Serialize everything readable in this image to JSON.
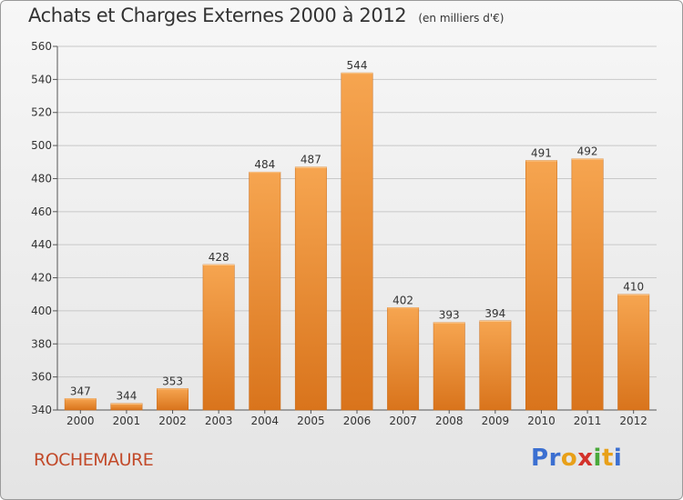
{
  "title": "Achats et Charges Externes 2000 à 2012",
  "units": "(en milliers d'€)",
  "city": "ROCHEMAURE",
  "logo": {
    "letters": [
      {
        "ch": "P",
        "color": "#3b6fd1"
      },
      {
        "ch": "r",
        "color": "#3b6fd1"
      },
      {
        "ch": "o",
        "color": "#e8a019"
      },
      {
        "ch": "x",
        "color": "#d3322b"
      },
      {
        "ch": "i",
        "color": "#49a93a"
      },
      {
        "ch": "t",
        "color": "#e8a019"
      },
      {
        "ch": "i",
        "color": "#3b6fd1"
      }
    ]
  },
  "colors": {
    "bar_light": "#f6a550",
    "bar_dark": "#d9741c",
    "axis": "#555555",
    "grid": "#c8c8c8",
    "text": "#333333"
  },
  "chart_data": {
    "type": "bar",
    "categories": [
      "2000",
      "2001",
      "2002",
      "2003",
      "2004",
      "2005",
      "2006",
      "2007",
      "2008",
      "2009",
      "2010",
      "2011",
      "2012"
    ],
    "values": [
      347,
      344,
      353,
      428,
      484,
      487,
      544,
      402,
      393,
      394,
      491,
      492,
      410
    ],
    "ylim": [
      340,
      560
    ],
    "yticks": [
      340,
      360,
      380,
      400,
      420,
      440,
      460,
      480,
      500,
      520,
      540,
      560
    ],
    "grid": true
  }
}
